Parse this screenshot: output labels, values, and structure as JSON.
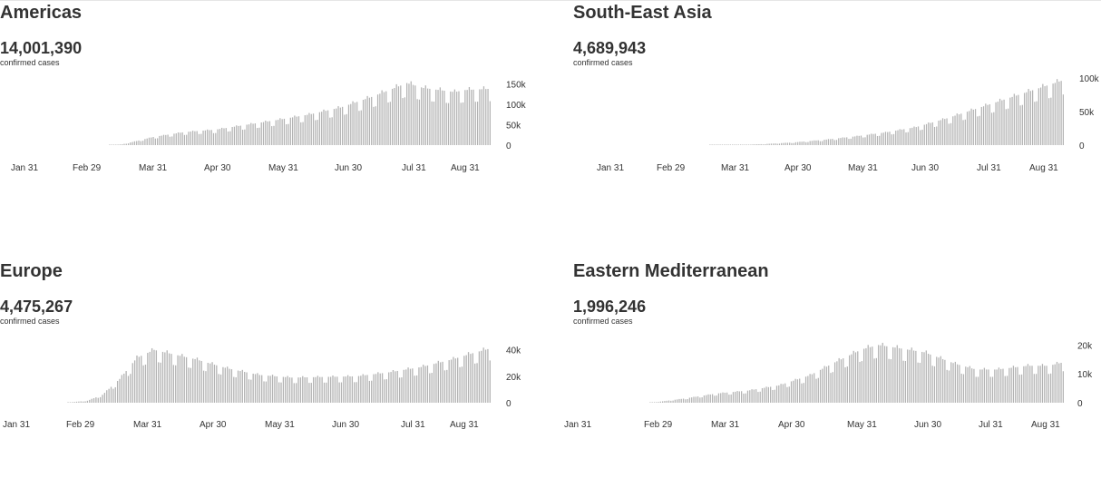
{
  "panels": [
    {
      "region": "Americas",
      "cases": "14,001,390",
      "caption": "confirmed cases",
      "chart_data": {
        "type": "bar",
        "title": "Americas",
        "xlabel": "",
        "ylabel": "",
        "x_ticks": [
          "Jan 31",
          "Feb 29",
          "Mar 31",
          "Apr 30",
          "May 31",
          "Jun 30",
          "Jul 31",
          "Aug 31"
        ],
        "y_ticks": [
          {
            "v": 0,
            "label": "0"
          },
          {
            "v": 50000,
            "label": "50k"
          },
          {
            "v": 100000,
            "label": "100k"
          },
          {
            "v": 150000,
            "label": "150k"
          }
        ],
        "ylim": [
          0,
          160000
        ],
        "x_range": [
          "Jan 31",
          "Sep 10"
        ],
        "bar_color": "#b3b3b3",
        "grid": false,
        "legend": "none",
        "series_profile": [
          {
            "day": 0,
            "value": 0
          },
          {
            "day": 38,
            "value": 0
          },
          {
            "day": 45,
            "value": 2000
          },
          {
            "day": 52,
            "value": 10000
          },
          {
            "day": 60,
            "value": 20000
          },
          {
            "day": 75,
            "value": 32000
          },
          {
            "day": 90,
            "value": 38000
          },
          {
            "day": 105,
            "value": 50000
          },
          {
            "day": 120,
            "value": 62000
          },
          {
            "day": 135,
            "value": 75000
          },
          {
            "day": 150,
            "value": 92000
          },
          {
            "day": 165,
            "value": 118000
          },
          {
            "day": 175,
            "value": 138000
          },
          {
            "day": 182,
            "value": 152000
          },
          {
            "day": 190,
            "value": 140000
          },
          {
            "day": 205,
            "value": 130000
          },
          {
            "day": 210,
            "value": 135000
          },
          {
            "day": 222,
            "value": 138000
          }
        ]
      }
    },
    {
      "region": "South-East Asia",
      "cases": "4,689,943",
      "caption": "confirmed cases",
      "chart_data": {
        "type": "bar",
        "title": "South-East Asia",
        "xlabel": "",
        "ylabel": "",
        "x_ticks": [
          "Jan 31",
          "Feb 29",
          "Mar 31",
          "Apr 30",
          "May 31",
          "Jun 30",
          "Jul 31",
          "Aug 31"
        ],
        "y_ticks": [
          {
            "v": 0,
            "label": "0"
          },
          {
            "v": 50000,
            "label": "50k"
          },
          {
            "v": 100000,
            "label": "100k"
          }
        ],
        "ylim": [
          0,
          103000
        ],
        "x_range": [
          "Jan 31",
          "Sep 10"
        ],
        "bar_color": "#b3b3b3",
        "grid": false,
        "legend": "none",
        "series_profile": [
          {
            "day": 0,
            "value": 0
          },
          {
            "day": 48,
            "value": 0
          },
          {
            "day": 60,
            "value": 300
          },
          {
            "day": 75,
            "value": 1500
          },
          {
            "day": 90,
            "value": 4000
          },
          {
            "day": 105,
            "value": 8000
          },
          {
            "day": 120,
            "value": 13000
          },
          {
            "day": 135,
            "value": 19000
          },
          {
            "day": 150,
            "value": 27000
          },
          {
            "day": 165,
            "value": 40000
          },
          {
            "day": 180,
            "value": 55000
          },
          {
            "day": 195,
            "value": 70000
          },
          {
            "day": 210,
            "value": 85000
          },
          {
            "day": 222,
            "value": 97000
          }
        ]
      }
    },
    {
      "region": "Europe",
      "cases": "4,475,267",
      "caption": "confirmed cases",
      "chart_data": {
        "type": "bar",
        "title": "Europe",
        "xlabel": "",
        "ylabel": "",
        "x_ticks": [
          "Jan 31",
          "Feb 29",
          "Mar 31",
          "Apr 30",
          "May 31",
          "Jun 30",
          "Jul 31",
          "Aug 31"
        ],
        "y_ticks": [
          {
            "v": 0,
            "label": "0"
          },
          {
            "v": 20000,
            "label": "20k"
          },
          {
            "v": 40000,
            "label": "40k"
          }
        ],
        "ylim": [
          0,
          46000
        ],
        "x_range": [
          "Jan 31",
          "Sep 10"
        ],
        "bar_color": "#b3b3b3",
        "grid": false,
        "legend": "none",
        "series_profile": [
          {
            "day": 0,
            "value": 0
          },
          {
            "day": 25,
            "value": 0
          },
          {
            "day": 35,
            "value": 1500
          },
          {
            "day": 42,
            "value": 6000
          },
          {
            "day": 50,
            "value": 18000
          },
          {
            "day": 58,
            "value": 34000
          },
          {
            "day": 66,
            "value": 40000
          },
          {
            "day": 74,
            "value": 37000
          },
          {
            "day": 85,
            "value": 33000
          },
          {
            "day": 100,
            "value": 26000
          },
          {
            "day": 115,
            "value": 21000
          },
          {
            "day": 130,
            "value": 19000
          },
          {
            "day": 145,
            "value": 19500
          },
          {
            "day": 160,
            "value": 20000
          },
          {
            "day": 175,
            "value": 23000
          },
          {
            "day": 190,
            "value": 27000
          },
          {
            "day": 205,
            "value": 33000
          },
          {
            "day": 215,
            "value": 38000
          },
          {
            "day": 222,
            "value": 41000
          }
        ]
      }
    },
    {
      "region": "Eastern Mediterranean",
      "cases": "1,996,246",
      "caption": "confirmed cases",
      "chart_data": {
        "type": "bar",
        "title": "Eastern Mediterranean",
        "xlabel": "",
        "ylabel": "",
        "x_ticks": [
          "Jan 31",
          "Feb 29",
          "Mar 31",
          "Apr 30",
          "May 31",
          "Jun 30",
          "Jul 31",
          "Aug 31"
        ],
        "y_ticks": [
          {
            "v": 0,
            "label": "0"
          },
          {
            "v": 10000,
            "label": "10k"
          },
          {
            "v": 20000,
            "label": "20k"
          }
        ],
        "ylim": [
          0,
          22000
        ],
        "x_range": [
          "Jan 31",
          "Sep 10"
        ],
        "bar_color": "#b3b3b3",
        "grid": false,
        "legend": "none",
        "series_profile": [
          {
            "day": 0,
            "value": 0
          },
          {
            "day": 22,
            "value": 0
          },
          {
            "day": 28,
            "value": 400
          },
          {
            "day": 40,
            "value": 1500
          },
          {
            "day": 55,
            "value": 3200
          },
          {
            "day": 70,
            "value": 4200
          },
          {
            "day": 85,
            "value": 6000
          },
          {
            "day": 100,
            "value": 9500
          },
          {
            "day": 112,
            "value": 14000
          },
          {
            "day": 125,
            "value": 18500
          },
          {
            "day": 133,
            "value": 20000
          },
          {
            "day": 142,
            "value": 19000
          },
          {
            "day": 155,
            "value": 17500
          },
          {
            "day": 170,
            "value": 13500
          },
          {
            "day": 180,
            "value": 11500
          },
          {
            "day": 190,
            "value": 11500
          },
          {
            "day": 205,
            "value": 12800
          },
          {
            "day": 215,
            "value": 12800
          },
          {
            "day": 222,
            "value": 14000
          }
        ]
      }
    }
  ]
}
